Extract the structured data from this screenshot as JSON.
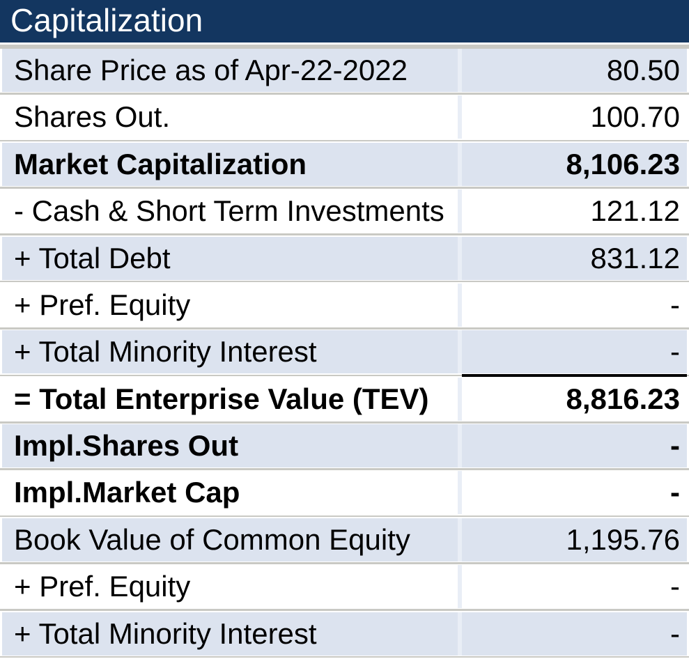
{
  "header": {
    "title": "Capitalization"
  },
  "colors": {
    "header_bg": "#133660",
    "header_text": "#ffffff",
    "shaded_row_bg": "#dce3ef",
    "plain_row_bg": "#ffffff",
    "grid_line": "#c9c9c4",
    "column_divider": "#e9eef6",
    "sum_line": "#000000",
    "text": "#000000"
  },
  "table": {
    "rows": [
      {
        "label": "Share Price as of Apr-22-2022",
        "value": "80.50",
        "shaded": true,
        "bold": false,
        "sum_line_above": false
      },
      {
        "label": "Shares Out.",
        "value": "100.70",
        "shaded": false,
        "bold": false,
        "sum_line_above": false
      },
      {
        "label": "Market Capitalization",
        "value": "8,106.23",
        "shaded": true,
        "bold": true,
        "sum_line_above": false
      },
      {
        "label": "- Cash & Short Term Investments",
        "value": "121.12",
        "shaded": false,
        "bold": false,
        "sum_line_above": false
      },
      {
        "label": "+ Total Debt",
        "value": "831.12",
        "shaded": true,
        "bold": false,
        "sum_line_above": false
      },
      {
        "label": "+ Pref. Equity",
        "value": "-",
        "shaded": false,
        "bold": false,
        "sum_line_above": false
      },
      {
        "label": "+ Total Minority Interest",
        "value": "-",
        "shaded": true,
        "bold": false,
        "sum_line_above": false
      },
      {
        "label": "= Total Enterprise Value (TEV)",
        "value": "8,816.23",
        "shaded": false,
        "bold": true,
        "sum_line_above": true
      },
      {
        "label": "Impl.Shares Out",
        "value": "-",
        "shaded": true,
        "bold": true,
        "sum_line_above": false
      },
      {
        "label": "Impl.Market Cap",
        "value": "-",
        "shaded": false,
        "bold": true,
        "sum_line_above": false
      },
      {
        "label": "Book Value of Common Equity",
        "value": "1,195.76",
        "shaded": true,
        "bold": false,
        "sum_line_above": false
      },
      {
        "label": "+ Pref. Equity",
        "value": "-",
        "shaded": false,
        "bold": false,
        "sum_line_above": false
      },
      {
        "label": "+ Total Minority Interest",
        "value": "-",
        "shaded": true,
        "bold": false,
        "sum_line_above": false
      }
    ]
  }
}
